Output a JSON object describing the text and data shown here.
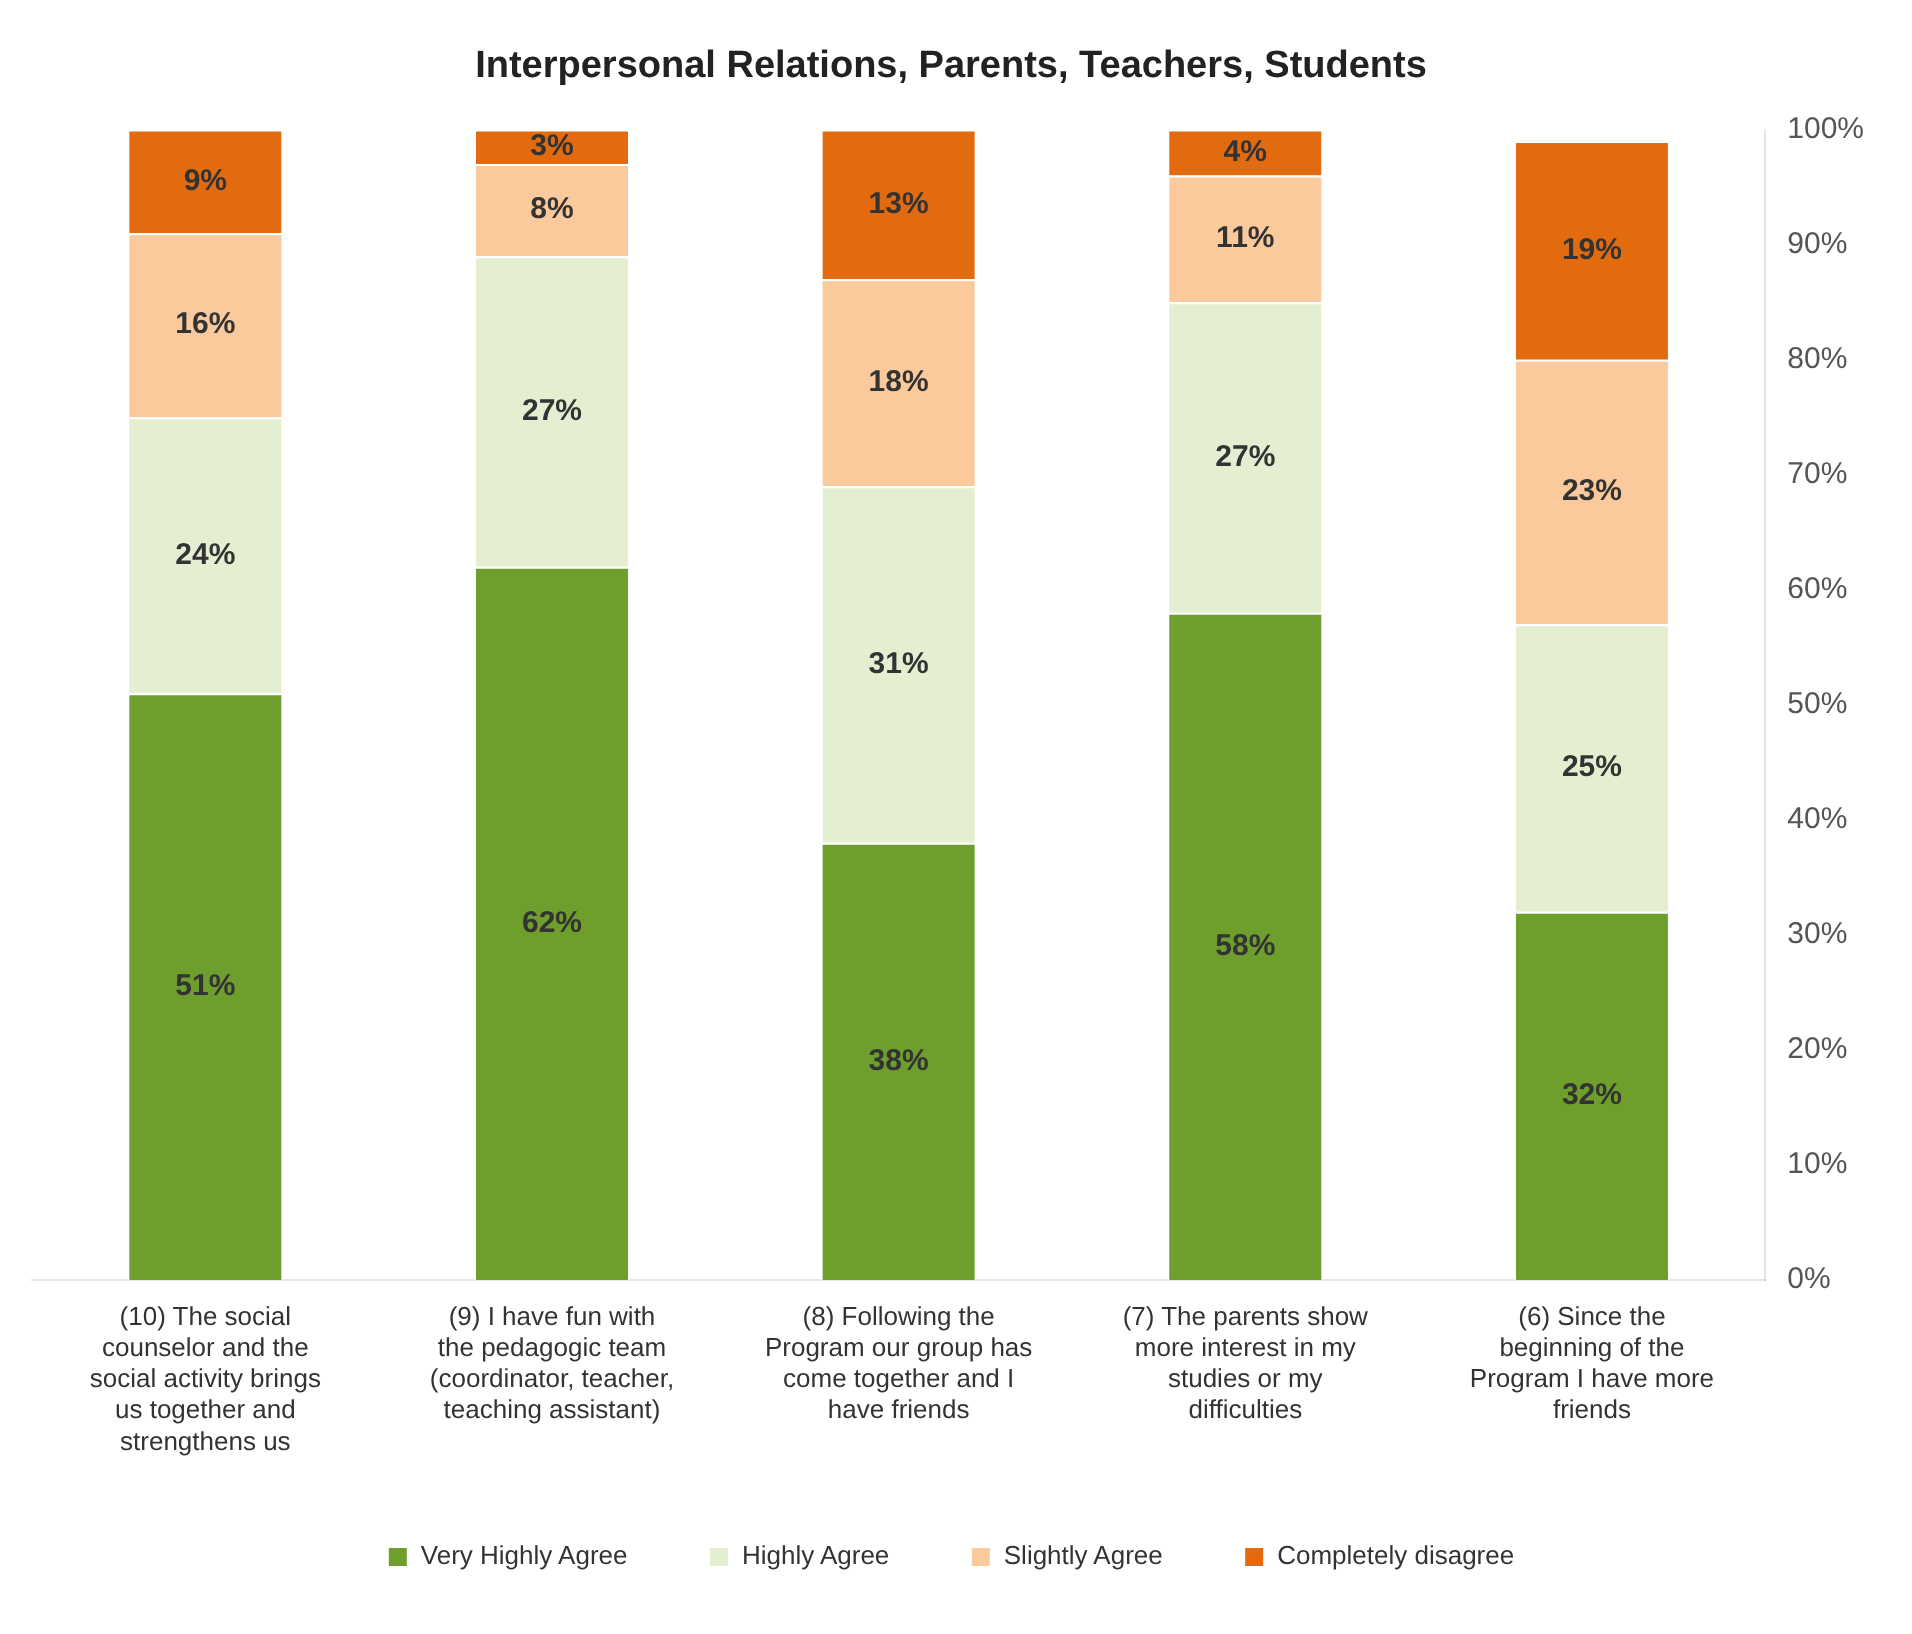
{
  "chart_data": {
    "type": "bar",
    "title": "Interpersonal Relations, Parents, Teachers, Students",
    "categories": [
      "(10) The social counselor and the social activity brings us together and strengthens us",
      "(9) I have fun with the pedagogic team (coordinator, teacher, teaching assistant)",
      "(8) Following the Program our group has come together and I have friends",
      "(7) The parents show more interest in my studies or my difficulties",
      "(6) Since the beginning of the Program I have more friends"
    ],
    "stacked": true,
    "legend": "bottom",
    "grid": false,
    "ylim": [
      0,
      100
    ],
    "yticks": [
      {
        "value": 0,
        "label": "0%"
      },
      {
        "value": 10,
        "label": "10%"
      },
      {
        "value": 20,
        "label": "20%"
      },
      {
        "value": 30,
        "label": "30%"
      },
      {
        "value": 40,
        "label": "40%"
      },
      {
        "value": 50,
        "label": "50%"
      },
      {
        "value": 60,
        "label": "60%"
      },
      {
        "value": 70,
        "label": "70%"
      },
      {
        "value": 80,
        "label": "80%"
      },
      {
        "value": 90,
        "label": "90%"
      },
      {
        "value": 100,
        "label": "100%"
      }
    ],
    "series": [
      {
        "name": "Very Highly Agree",
        "color": "#6e9e2c",
        "values": [
          51,
          62,
          38,
          58,
          32
        ],
        "value_labels": [
          "51%",
          "62%",
          "38%",
          "58%",
          "32%"
        ]
      },
      {
        "name": "Highly Agree",
        "color": "#e4efd2",
        "values": [
          24,
          27,
          31,
          27,
          25
        ],
        "value_labels": [
          "24%",
          "27%",
          "31%",
          "27%",
          "25%"
        ]
      },
      {
        "name": "Slightly Agree",
        "color": "#fac99c",
        "values": [
          16,
          8,
          18,
          11,
          23
        ],
        "value_labels": [
          "16%",
          "8%",
          "18%",
          "11%",
          "23%"
        ]
      },
      {
        "name": "Completely disagree",
        "color": "#e26b10",
        "values": [
          9,
          3,
          13,
          4,
          19
        ],
        "value_labels": [
          "9%",
          "3%",
          "13%",
          "4%",
          "19%"
        ]
      }
    ]
  }
}
